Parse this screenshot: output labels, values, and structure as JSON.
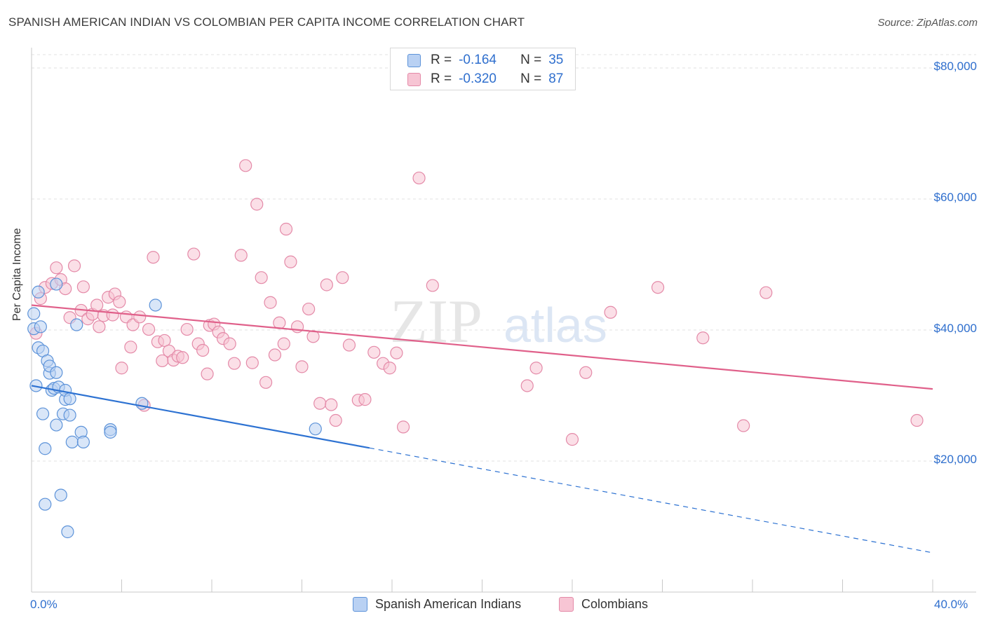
{
  "header": {
    "title": "SPANISH AMERICAN INDIAN VS COLOMBIAN PER CAPITA INCOME CORRELATION CHART",
    "source": "Source: ZipAtlas.com"
  },
  "watermark": {
    "zip": "ZIP",
    "atlas": "atlas"
  },
  "colors": {
    "blue_fill": "#b9d1f3",
    "blue_stroke": "#5d93d9",
    "blue_line": "#2d72d2",
    "pink_fill": "#f7c5d4",
    "pink_stroke": "#e48aa8",
    "pink_line": "#e0608a",
    "axis_text": "#2f6fce",
    "grid": "#e2e2e2"
  },
  "legend_top": [
    {
      "r_label": "R =",
      "r_value": "-0.164",
      "n_label": "N =",
      "n_value": "35"
    },
    {
      "r_label": "R =",
      "r_value": "-0.320",
      "n_label": "N =",
      "n_value": "87"
    }
  ],
  "legend_bottom": [
    "Spanish American Indians",
    "Colombians"
  ],
  "chart_data": {
    "type": "scatter",
    "title": "SPANISH AMERICAN INDIAN VS COLOMBIAN PER CAPITA INCOME CORRELATION CHART",
    "xlabel": "",
    "ylabel": "Per Capita Income",
    "xlim": [
      0,
      40
    ],
    "ylim": [
      0,
      80000
    ],
    "x_tick_labels": [
      "0.0%",
      "40.0%"
    ],
    "y_ticks": [
      20000,
      40000,
      60000,
      80000
    ],
    "y_tick_labels": [
      "$20,000",
      "$40,000",
      "$60,000",
      "$80,000"
    ],
    "series": [
      {
        "name": "Spanish American Indians",
        "r": -0.164,
        "n": 35,
        "trend": {
          "x0": 0,
          "y0": 31500,
          "x1": 15,
          "y1": 22000,
          "dashed_to_x": 40,
          "dashed_to_y": 6000
        },
        "points": [
          [
            0.1,
            42500
          ],
          [
            0.1,
            40200
          ],
          [
            0.2,
            31500
          ],
          [
            0.3,
            37300
          ],
          [
            0.3,
            45800
          ],
          [
            0.4,
            40500
          ],
          [
            0.5,
            27200
          ],
          [
            0.5,
            36800
          ],
          [
            0.6,
            13400
          ],
          [
            0.6,
            21900
          ],
          [
            0.7,
            35300
          ],
          [
            0.8,
            33400
          ],
          [
            0.8,
            34500
          ],
          [
            0.9,
            30800
          ],
          [
            1.0,
            31100
          ],
          [
            1.1,
            33500
          ],
          [
            1.1,
            47000
          ],
          [
            1.1,
            25500
          ],
          [
            1.2,
            31300
          ],
          [
            1.3,
            14800
          ],
          [
            1.4,
            27200
          ],
          [
            1.5,
            29400
          ],
          [
            1.5,
            30800
          ],
          [
            1.6,
            9200
          ],
          [
            1.7,
            27000
          ],
          [
            1.7,
            29500
          ],
          [
            1.8,
            22900
          ],
          [
            2.2,
            24400
          ],
          [
            2.3,
            22900
          ],
          [
            2.0,
            40800
          ],
          [
            3.5,
            24800
          ],
          [
            3.5,
            24400
          ],
          [
            4.9,
            28800
          ],
          [
            5.5,
            43800
          ],
          [
            12.6,
            24900
          ]
        ]
      },
      {
        "name": "Colombians",
        "r": -0.32,
        "n": 87,
        "trend": {
          "x0": 0,
          "y0": 43800,
          "x1": 40,
          "y1": 31000
        },
        "points": [
          [
            0.2,
            39500
          ],
          [
            0.4,
            44800
          ],
          [
            0.6,
            46500
          ],
          [
            0.9,
            47100
          ],
          [
            1.1,
            49500
          ],
          [
            1.3,
            47700
          ],
          [
            1.5,
            46300
          ],
          [
            1.7,
            41900
          ],
          [
            1.9,
            49800
          ],
          [
            2.2,
            43000
          ],
          [
            2.3,
            46600
          ],
          [
            2.5,
            41700
          ],
          [
            2.7,
            42400
          ],
          [
            2.9,
            43800
          ],
          [
            3.0,
            40500
          ],
          [
            3.2,
            42200
          ],
          [
            3.4,
            45000
          ],
          [
            3.6,
            42300
          ],
          [
            3.7,
            45500
          ],
          [
            3.9,
            44300
          ],
          [
            4.0,
            34200
          ],
          [
            4.2,
            42000
          ],
          [
            4.4,
            37400
          ],
          [
            4.5,
            40800
          ],
          [
            4.8,
            42000
          ],
          [
            5.0,
            28500
          ],
          [
            5.2,
            40100
          ],
          [
            5.4,
            51100
          ],
          [
            5.6,
            38200
          ],
          [
            5.8,
            35300
          ],
          [
            5.9,
            38400
          ],
          [
            6.1,
            36800
          ],
          [
            6.3,
            35400
          ],
          [
            6.5,
            36000
          ],
          [
            6.7,
            35800
          ],
          [
            6.9,
            40100
          ],
          [
            7.2,
            51600
          ],
          [
            7.4,
            37900
          ],
          [
            7.6,
            36900
          ],
          [
            7.8,
            33300
          ],
          [
            7.9,
            40700
          ],
          [
            8.1,
            40900
          ],
          [
            8.3,
            39700
          ],
          [
            8.5,
            38700
          ],
          [
            8.8,
            37900
          ],
          [
            9.0,
            34900
          ],
          [
            9.3,
            51400
          ],
          [
            9.5,
            65100
          ],
          [
            9.8,
            35000
          ],
          [
            10.0,
            59200
          ],
          [
            10.2,
            48000
          ],
          [
            10.4,
            32000
          ],
          [
            10.6,
            44200
          ],
          [
            10.8,
            36200
          ],
          [
            11.0,
            41100
          ],
          [
            11.2,
            37900
          ],
          [
            11.3,
            55400
          ],
          [
            11.5,
            50400
          ],
          [
            11.8,
            40500
          ],
          [
            12.0,
            34400
          ],
          [
            12.3,
            43200
          ],
          [
            12.5,
            39000
          ],
          [
            12.8,
            28800
          ],
          [
            13.1,
            46900
          ],
          [
            13.3,
            28600
          ],
          [
            13.5,
            26200
          ],
          [
            13.8,
            48000
          ],
          [
            14.1,
            37700
          ],
          [
            14.5,
            29300
          ],
          [
            14.8,
            29400
          ],
          [
            15.2,
            36600
          ],
          [
            15.6,
            34900
          ],
          [
            15.9,
            34200
          ],
          [
            16.2,
            36500
          ],
          [
            16.5,
            25200
          ],
          [
            17.2,
            63200
          ],
          [
            17.8,
            46800
          ],
          [
            22.0,
            31500
          ],
          [
            22.4,
            34200
          ],
          [
            24.0,
            23300
          ],
          [
            24.6,
            33500
          ],
          [
            25.7,
            42700
          ],
          [
            27.8,
            46500
          ],
          [
            29.8,
            38800
          ],
          [
            31.6,
            25400
          ],
          [
            32.6,
            45700
          ],
          [
            39.3,
            26200
          ]
        ]
      }
    ]
  }
}
